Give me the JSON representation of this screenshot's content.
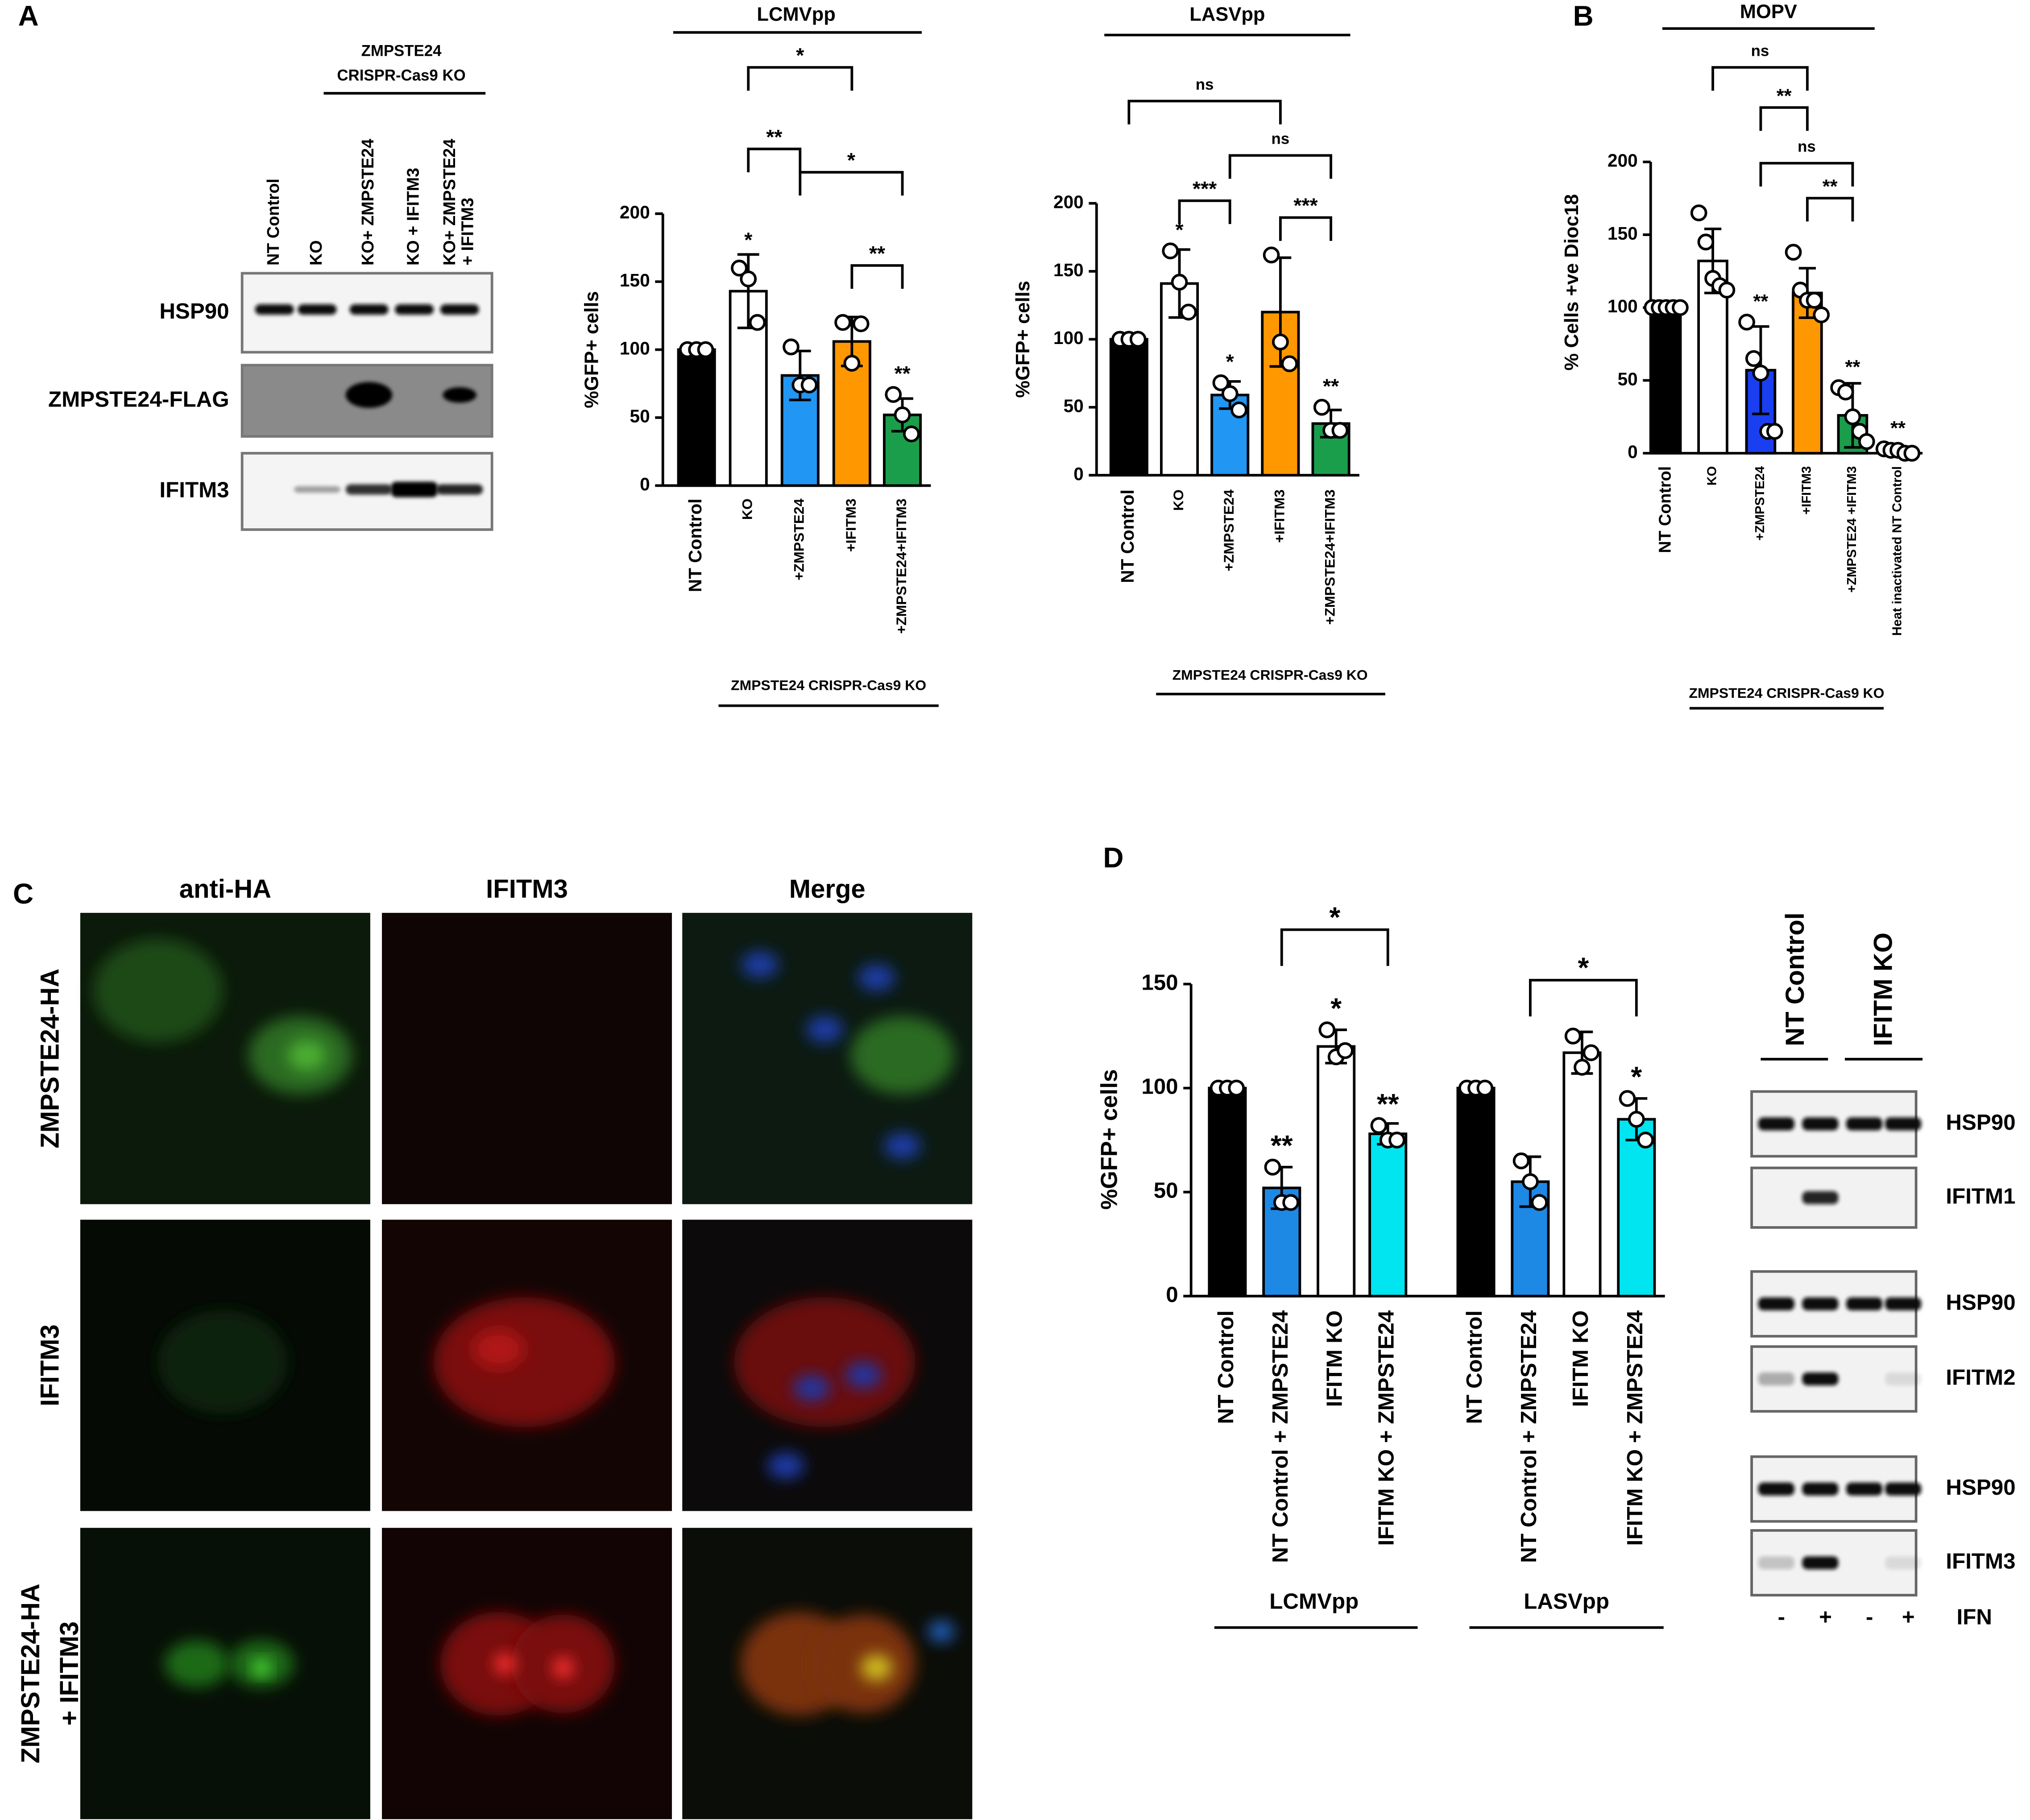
{
  "panel_labels": [
    "A",
    "B",
    "C",
    "D"
  ],
  "chart_data": [
    {
      "type": "bar",
      "title": "LCMVpp",
      "y_label": "%GFP+ cells",
      "categories": [
        "NT Control",
        "KO",
        "+ZMPSTE24",
        "+IFITM3",
        "+ZMPSTE24+IFITM3"
      ],
      "values": [
        100,
        143,
        81,
        106,
        52
      ],
      "errors": [
        null,
        27,
        18,
        18,
        12
      ],
      "points": [
        [
          100,
          100,
          100
        ],
        [
          160,
          152,
          120
        ],
        [
          102,
          74,
          74
        ],
        [
          120,
          90,
          119
        ],
        [
          67,
          52,
          38
        ]
      ],
      "colors": [
        "#000000",
        "#ffffff",
        "#2196f3",
        "#ff9800",
        "#1b9e4b"
      ],
      "annotations": [
        null,
        "*",
        null,
        null,
        "**"
      ],
      "comparisons": [
        {
          "pair": [
            1,
            3
          ],
          "label": "*"
        },
        {
          "pair": [
            1,
            2
          ],
          "label": "**"
        },
        {
          "pair": [
            2,
            4
          ],
          "label": "*"
        },
        {
          "pair": [
            3,
            4
          ],
          "label": "**"
        }
      ],
      "groups": [
        {
          "label": "ZMPSTE24 CRISPR-Cas9 KO"
        }
      ],
      "ylim": [
        0,
        200
      ],
      "yticks": [
        0,
        50,
        100,
        150,
        200
      ]
    },
    {
      "type": "bar",
      "title": "LASVpp",
      "y_label": "%GFP+ cells",
      "categories": [
        "NT Control",
        "KO",
        "+ZMPSTE24",
        "+IFITM3",
        "+ZMPSTE24+IFITM3"
      ],
      "values": [
        100,
        141,
        59,
        120,
        38
      ],
      "errors": [
        null,
        25,
        10,
        40,
        10
      ],
      "points": [
        [
          100,
          100,
          100
        ],
        [
          165,
          142,
          120
        ],
        [
          68,
          60,
          48
        ],
        [
          162,
          98,
          82
        ],
        [
          50,
          33,
          33
        ]
      ],
      "colors": [
        "#000000",
        "#ffffff",
        "#2196f3",
        "#ff9800",
        "#1b9e4b"
      ],
      "annotations": [
        null,
        "*",
        "*",
        null,
        "**"
      ],
      "comparisons": [
        {
          "pair": [
            0,
            3
          ],
          "label": "ns"
        },
        {
          "pair": [
            1,
            2
          ],
          "label": "***"
        },
        {
          "pair": [
            2,
            4
          ],
          "label": "ns"
        },
        {
          "pair": [
            3,
            4
          ],
          "label": "***"
        }
      ],
      "groups": [
        {
          "label": "ZMPSTE24 CRISPR-Cas9 KO"
        }
      ],
      "ylim": [
        0,
        200
      ],
      "yticks": [
        0,
        50,
        100,
        150,
        200
      ]
    },
    {
      "type": "bar",
      "title": "MOPV",
      "y_label": "% Cells +ve Dioc18",
      "categories": [
        "NT Control",
        "KO",
        "+ZMPSTE24",
        "+IFITM3",
        "+ZMPSTE24 +IFITM3",
        "Heat inactivated NT Control"
      ],
      "values": [
        100,
        132,
        57,
        110,
        26,
        2
      ],
      "errors": [
        null,
        22,
        30,
        17,
        22,
        null
      ],
      "points": [
        [
          100,
          100,
          100,
          100,
          100
        ],
        [
          165,
          145,
          120,
          115,
          112
        ],
        [
          90,
          65,
          55,
          15,
          15
        ],
        [
          138,
          112,
          105,
          105,
          95
        ],
        [
          45,
          42,
          25,
          15,
          8
        ],
        [
          3,
          2,
          2,
          0,
          0
        ]
      ],
      "colors": [
        "#000000",
        "#ffffff",
        "#1a3ff0",
        "#ff9800",
        "#1b9e4b",
        "#ffffff"
      ],
      "annotations": [
        null,
        null,
        "**",
        null,
        "**",
        "**"
      ],
      "comparisons": [
        {
          "pair": [
            1,
            3
          ],
          "label": "ns"
        },
        {
          "pair": [
            2,
            3
          ],
          "label": "**"
        },
        {
          "pair": [
            2,
            4
          ],
          "label": "ns"
        },
        {
          "pair": [
            3,
            4
          ],
          "label": "**"
        }
      ],
      "groups": [
        {
          "label": "ZMPSTE24 CRISPR-Cas9 KO"
        }
      ],
      "ylim": [
        0,
        200
      ],
      "yticks": [
        0,
        50,
        100,
        150,
        200
      ]
    },
    {
      "type": "bar",
      "y_label": "%GFP+ cells",
      "categories": [
        "NT Control",
        "NT Control + ZMPSTE24",
        "IFITM KO",
        "IFITM KO + ZMPSTE24",
        "NT Control",
        "NT Control + ZMPSTE24",
        "IFITM KO",
        "IFITM KO + ZMPSTE24"
      ],
      "values": [
        100,
        52,
        120,
        78,
        100,
        55,
        117,
        85
      ],
      "errors": [
        null,
        10,
        8,
        5,
        null,
        12,
        10,
        10
      ],
      "points": [
        [
          100,
          100,
          100
        ],
        [
          62,
          45,
          45
        ],
        [
          128,
          115,
          118
        ],
        [
          82,
          75,
          75
        ],
        [
          100,
          100,
          100
        ],
        [
          65,
          55,
          45
        ],
        [
          125,
          110,
          117
        ],
        [
          95,
          85,
          75
        ]
      ],
      "colors": [
        "#000000",
        "#1e88e5",
        "#ffffff",
        "#00e5f0",
        "#000000",
        "#1e88e5",
        "#ffffff",
        "#00e5f0"
      ],
      "annotations": [
        null,
        "**",
        "*",
        "**",
        null,
        null,
        null,
        "*"
      ],
      "comparisons": [
        {
          "pair": [
            1,
            3
          ],
          "label": "*"
        },
        {
          "pair": [
            5,
            7
          ],
          "label": "*"
        }
      ],
      "groups": [
        {
          "label": "LCMVpp"
        },
        {
          "label": "LASVpp"
        }
      ],
      "ylim": [
        0,
        150
      ],
      "yticks": [
        0,
        50,
        100,
        150
      ]
    }
  ],
  "blot_a": {
    "header": [
      "ZMPSTE24",
      "CRISPR-Cas9 KO"
    ],
    "lanes": [
      [
        "NT Control"
      ],
      [
        "KO"
      ],
      [
        "KO+ ZMPSTE24"
      ],
      [
        "KO + IFITM3"
      ],
      [
        "KO+ ZMPSTE24",
        "+ IFITM3"
      ]
    ],
    "rows": [
      "HSP90",
      "ZMPSTE24-FLAG",
      "IFITM3"
    ]
  },
  "microscopy": {
    "columns": [
      "anti-HA",
      "IFITM3",
      "Merge"
    ],
    "rows": [
      [
        "ZMPSTE24-HA"
      ],
      [
        "IFITM3"
      ],
      [
        "ZMPSTE24-HA",
        "+ IFITM3"
      ]
    ]
  },
  "blot_d": {
    "lanes": [
      "NT Control",
      "IFITM KO"
    ],
    "rows": [
      "HSP90",
      "IFITM1",
      "HSP90",
      "IFITM2",
      "HSP90",
      "IFITM3"
    ],
    "treatment": [
      "-",
      "+",
      "-",
      "+"
    ],
    "treatment_label": "IFN"
  }
}
